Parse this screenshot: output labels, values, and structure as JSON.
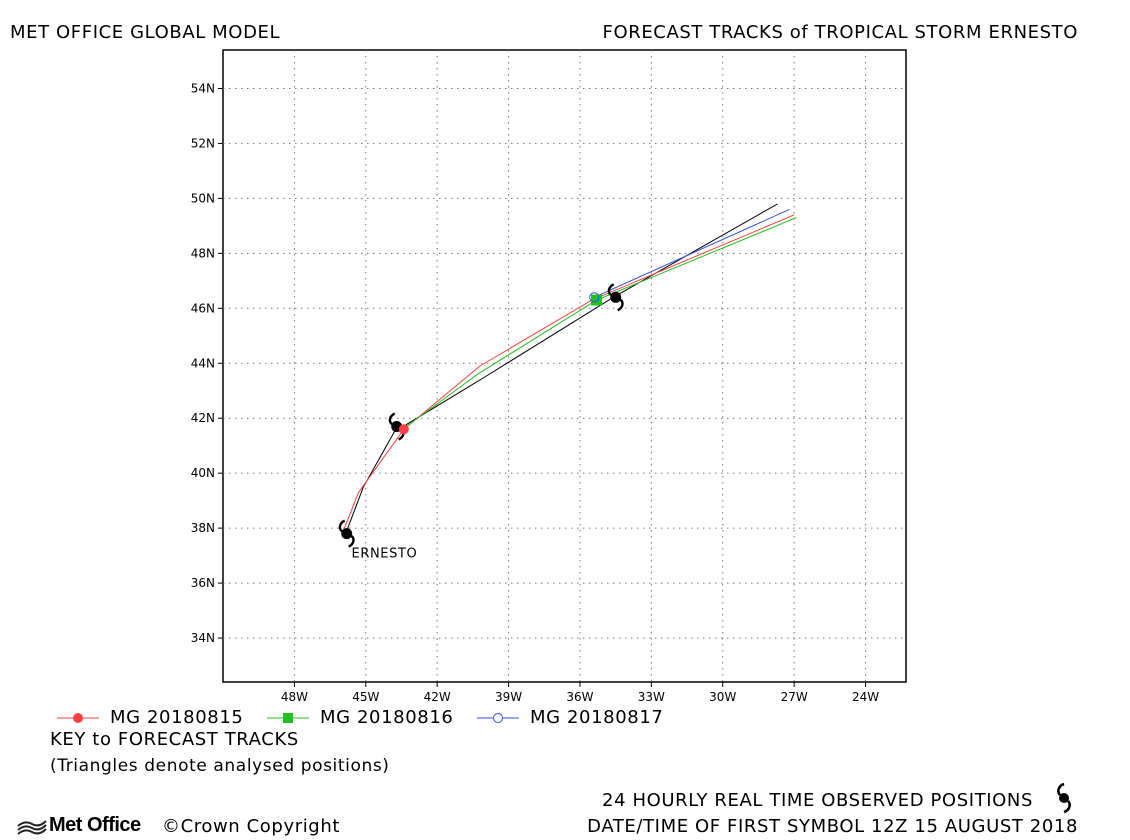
{
  "header": {
    "left_title": "MET OFFICE GLOBAL MODEL",
    "right_title": "FORECAST TRACKS of TROPICAL STORM ERNESTO"
  },
  "chart_data": {
    "type": "line",
    "title": "FORECAST TRACKS of TROPICAL STORM ERNESTO",
    "xlabel": "",
    "ylabel": "",
    "xlim": [
      -51,
      -22.3
    ],
    "ylim": [
      32.4,
      55.4
    ],
    "grid": true,
    "x_ticks": [
      {
        "value": -48,
        "label": "48W"
      },
      {
        "value": -45,
        "label": "45W"
      },
      {
        "value": -42,
        "label": "42W"
      },
      {
        "value": -39,
        "label": "39W"
      },
      {
        "value": -36,
        "label": "36W"
      },
      {
        "value": -33,
        "label": "33W"
      },
      {
        "value": -30,
        "label": "30W"
      },
      {
        "value": -27,
        "label": "27W"
      },
      {
        "value": -24,
        "label": "24W"
      }
    ],
    "y_ticks": [
      {
        "value": 34,
        "label": "34N"
      },
      {
        "value": 36,
        "label": "36N"
      },
      {
        "value": 38,
        "label": "38N"
      },
      {
        "value": 40,
        "label": "40N"
      },
      {
        "value": 42,
        "label": "42N"
      },
      {
        "value": 44,
        "label": "44N"
      },
      {
        "value": 46,
        "label": "46N"
      },
      {
        "value": 48,
        "label": "48N"
      },
      {
        "value": 50,
        "label": "50N"
      },
      {
        "value": 52,
        "label": "52N"
      },
      {
        "value": 54,
        "label": "54N"
      }
    ],
    "series": [
      {
        "name": "MG 20180815",
        "color": "#ff4040",
        "marker": "filled-circle",
        "points": [
          [
            -45.9,
            38.0
          ],
          [
            -45.3,
            39.3
          ],
          [
            -43.4,
            41.6
          ],
          [
            -40.2,
            43.9
          ],
          [
            -35.5,
            46.3
          ],
          [
            -27.0,
            49.4
          ]
        ],
        "marker_index": 2
      },
      {
        "name": "MG 20180816",
        "color": "#20c020",
        "marker": "filled-square",
        "points": [
          [
            -43.6,
            41.5
          ],
          [
            -40.3,
            43.6
          ],
          [
            -35.3,
            46.3
          ],
          [
            -26.9,
            49.3
          ]
        ],
        "marker_index": 2
      },
      {
        "name": "MG 20180817",
        "color": "#3050e0",
        "marker": "open-circle",
        "points": [
          [
            -35.4,
            46.4
          ],
          [
            -27.2,
            49.6
          ]
        ],
        "marker_index": 0
      },
      {
        "name": "",
        "color": "#000000",
        "marker": "none",
        "points": [
          [
            -45.8,
            37.9
          ],
          [
            -45.1,
            39.5
          ],
          [
            -43.8,
            41.5
          ],
          [
            -40.0,
            43.5
          ],
          [
            -34.6,
            46.4
          ],
          [
            -27.7,
            49.8
          ]
        ],
        "marker_index": -1
      }
    ],
    "observed_positions": [
      [
        -45.8,
        37.8
      ],
      [
        -43.7,
        41.7
      ],
      [
        -34.5,
        46.4
      ]
    ],
    "storm_label": {
      "text": "ERNESTO",
      "lon": -45.6,
      "lat": 37.3
    }
  },
  "legend": {
    "items": [
      {
        "label": "MG 20180815",
        "color": "#ff4040",
        "marker": "filled-circle"
      },
      {
        "label": "MG 20180816",
        "color": "#20c020",
        "marker": "filled-square"
      },
      {
        "label": "MG 20180817",
        "color": "#3050e0",
        "marker": "open-circle"
      }
    ],
    "key_title": "KEY to FORECAST TRACKS",
    "key_note": "(Triangles denote analysed positions)"
  },
  "footer": {
    "observed_note": "24 HOURLY REAL TIME OBSERVED POSITIONS",
    "first_symbol": "DATE/TIME OF FIRST SYMBOL 12Z 15 AUGUST 2018",
    "brand": "Met Office",
    "copyright": "©Crown Copyright"
  }
}
